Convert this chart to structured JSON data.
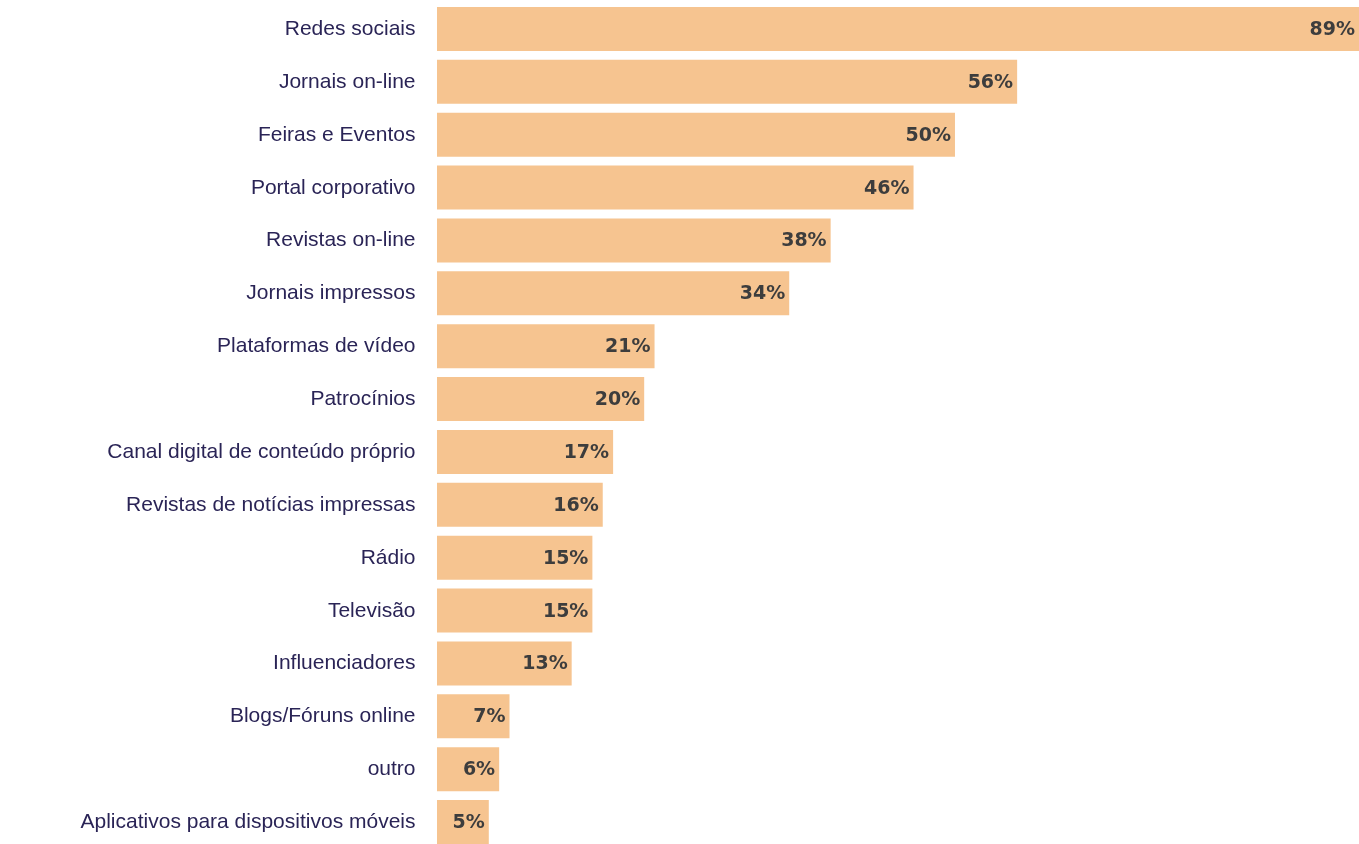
{
  "chart_data": {
    "type": "bar",
    "orientation": "horizontal",
    "categories": [
      "Redes sociais",
      "Jornais on-line",
      "Feiras e Eventos",
      "Portal corporativo",
      "Revistas on-line",
      "Jornais impressos",
      "Plataformas de vídeo",
      "Patrocínios",
      "Canal digital de conteúdo próprio",
      "Revistas de notícias impressas",
      "Rádio",
      "Televisão",
      "Influenciadores",
      "Blogs/Fóruns online",
      "outro",
      "Aplicativos para dispositivos móveis"
    ],
    "values": [
      89,
      56,
      50,
      46,
      38,
      34,
      21,
      20,
      17,
      16,
      15,
      15,
      13,
      7,
      6,
      5
    ],
    "value_labels": [
      "89%",
      "56%",
      "50%",
      "46%",
      "38%",
      "34%",
      "21%",
      "20%",
      "17%",
      "16%",
      "15%",
      "15%",
      "13%",
      "7%",
      "6%",
      "5%"
    ],
    "color": "#f6c490"
  }
}
